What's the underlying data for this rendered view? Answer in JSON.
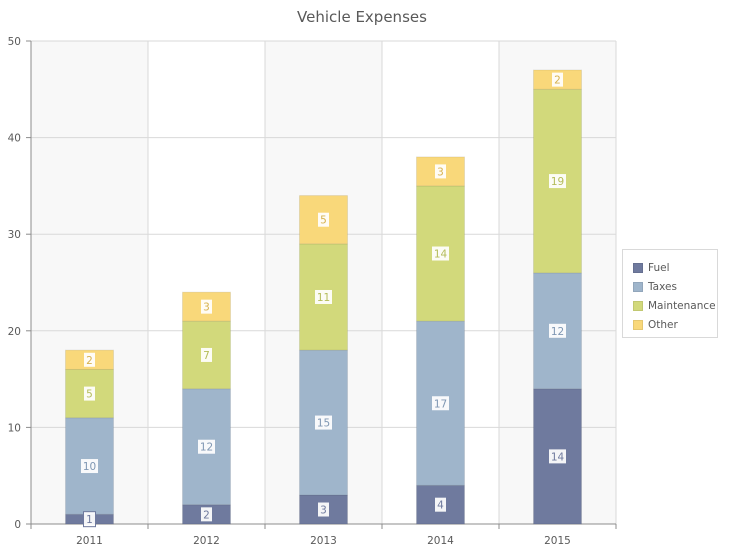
{
  "chart_data": {
    "type": "bar",
    "stacked": true,
    "title": "Vehicle Expenses",
    "xlabel": "",
    "ylabel": "",
    "categories": [
      "2011",
      "2012",
      "2013",
      "2014",
      "2015"
    ],
    "ylim": [
      0,
      50
    ],
    "yticks": [
      0,
      10,
      20,
      30,
      40,
      50
    ],
    "grid": true,
    "legend_position": "right",
    "series": [
      {
        "name": "Fuel",
        "color": "#6f7a9e",
        "values": [
          1,
          2,
          3,
          4,
          14
        ]
      },
      {
        "name": "Taxes",
        "color": "#9fb5cb",
        "values": [
          10,
          12,
          15,
          17,
          12
        ]
      },
      {
        "name": "Maintenance",
        "color": "#d2d97b",
        "values": [
          5,
          7,
          11,
          14,
          19
        ]
      },
      {
        "name": "Other",
        "color": "#f9d87a",
        "values": [
          2,
          3,
          5,
          3,
          2
        ]
      }
    ],
    "label_text_colors": [
      "#6f7a9e",
      "#7f97b3",
      "#b4bc5a",
      "#d6b24f"
    ]
  }
}
